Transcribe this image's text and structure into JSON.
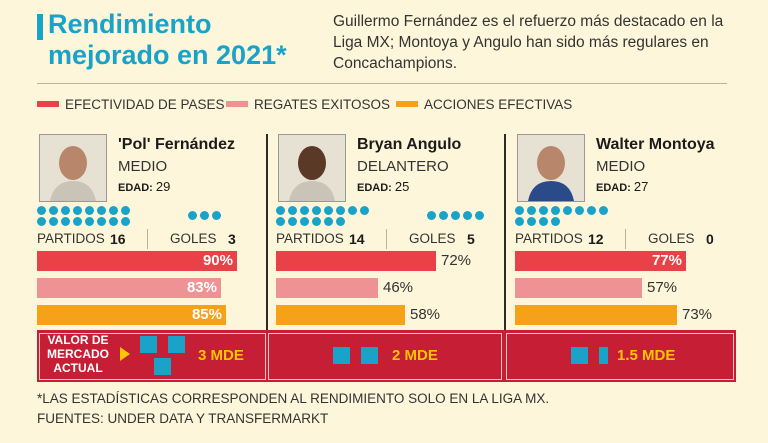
{
  "header": {
    "title": "Rendimiento mejorado en 2021*",
    "subtitle": "Guillermo Fernández es el refuerzo más destacado en la Liga MX; Montoya y Angulo han sido más regulares en Concachampions."
  },
  "chart_data": {
    "type": "bar",
    "title": "Rendimiento mejorado en 2021*",
    "categories": [
      "'Pol' Fernández",
      "Bryan Angulo",
      "Walter Montoya"
    ],
    "series": [
      {
        "name": "EFECTIVIDAD DE PASES",
        "color": "#ea4047",
        "values": [
          90,
          72,
          77
        ],
        "labels": [
          "90%",
          "72%",
          "77%"
        ]
      },
      {
        "name": "REGATES EXITOSOS",
        "color": "#ef9295",
        "values": [
          83,
          46,
          57
        ],
        "labels": [
          "83%",
          "46%",
          "57%"
        ]
      },
      {
        "name": "ACCIONES EFECTIVAS",
        "color": "#f6a11a",
        "values": [
          85,
          58,
          73
        ],
        "labels": [
          "85%",
          "58%",
          "73%"
        ]
      }
    ],
    "ylim": [
      0,
      100
    ]
  },
  "legend": [
    {
      "label": "EFECTIVIDAD DE PASES",
      "color": "#ea4047"
    },
    {
      "label": "REGATES EXITOSOS",
      "color": "#ef9295"
    },
    {
      "label": "ACCIONES EFECTIVAS",
      "color": "#f6a11a"
    }
  ],
  "labels": {
    "age": "EDAD:",
    "partidos": "PARTIDOS",
    "goles": "GOLES",
    "market": "VALOR DE MERCADO ACTUAL"
  },
  "players": [
    {
      "name": "'Pol' Fernández",
      "position": "MEDIO",
      "age": "29",
      "partidos": "16",
      "goles": "3",
      "partidos_n": 16,
      "goles_n": 3,
      "market": "3 MDE",
      "market_squares": 3
    },
    {
      "name": "Bryan Angulo",
      "position": "DELANTERO",
      "age": "25",
      "partidos": "14",
      "goles": "5",
      "partidos_n": 14,
      "goles_n": 5,
      "market": "2 MDE",
      "market_squares": 2
    },
    {
      "name": "Walter Montoya",
      "position": "MEDIO",
      "age": "27",
      "partidos": "12",
      "goles": "0",
      "partidos_n": 12,
      "goles_n": 0,
      "market": "1.5 MDE",
      "market_squares": 1.5
    }
  ],
  "footer": {
    "note": "*LAS ESTADÍSTICAS CORRESPONDEN AL RENDIMIENTO SOLO EN LA LIGA MX.",
    "source": "FUENTES: UNDER DATA Y TRANSFERMARKT"
  }
}
